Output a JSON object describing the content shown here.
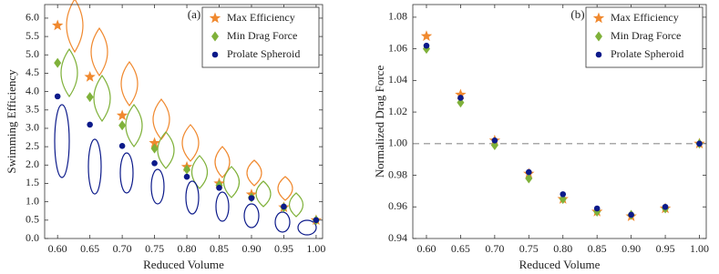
{
  "chart_data": [
    {
      "type": "scatter",
      "annotation": "(a)",
      "xlabel": "Reduced Volume",
      "ylabel": "Swimming Efficiency",
      "x": [
        0.6,
        0.65,
        0.7,
        0.75,
        0.8,
        0.85,
        0.9,
        0.95,
        1.0
      ],
      "xlim": [
        0.58,
        1.01
      ],
      "xticks": [
        {
          "value": 0.6,
          "label": "0.60"
        },
        {
          "value": 0.65,
          "label": "0.65"
        },
        {
          "value": 0.7,
          "label": "0.70"
        },
        {
          "value": 0.75,
          "label": "0.75"
        },
        {
          "value": 0.8,
          "label": "0.80"
        },
        {
          "value": 0.85,
          "label": "0.85"
        },
        {
          "value": 0.9,
          "label": "0.90"
        },
        {
          "value": 0.95,
          "label": "0.95"
        },
        {
          "value": 1.0,
          "label": "1.00"
        }
      ],
      "ylim": [
        0,
        6.37
      ],
      "yticks": [
        {
          "value": 0,
          "label": "0.0"
        },
        0.5,
        {
          "value": 1,
          "label": "1.0"
        },
        1.5,
        {
          "value": 2,
          "label": "2.0"
        },
        2.5,
        {
          "value": 3,
          "label": "3.0"
        },
        3.5,
        {
          "value": 4,
          "label": "4.0"
        },
        4.5,
        {
          "value": 5,
          "label": "5.0"
        },
        5.5,
        {
          "value": 6,
          "label": "6.0"
        }
      ],
      "legend": "upper right",
      "series": [
        {
          "name": "Max Efficiency",
          "color": "#f0892f",
          "marker": "star",
          "values": [
            5.8,
            4.4,
            3.35,
            2.6,
            1.95,
            1.5,
            1.2,
            0.85,
            0.5
          ]
        },
        {
          "name": "Min Drag Force",
          "color": "#7fb13a",
          "marker": "diamond",
          "values": [
            4.78,
            3.85,
            3.08,
            2.45,
            1.88,
            1.45,
            1.12,
            0.85,
            0.5
          ]
        },
        {
          "name": "Prolate Spheroid",
          "color": "#0c1a8a",
          "marker": "circle",
          "values": [
            3.87,
            3.1,
            2.52,
            2.05,
            1.68,
            1.38,
            1.1,
            0.87,
            0.5
          ]
        }
      ]
    },
    {
      "type": "scatter",
      "annotation": "(b)",
      "xlabel": "Reduced Volume",
      "ylabel": "Normalized Drag Force",
      "x": [
        0.6,
        0.65,
        0.7,
        0.75,
        0.8,
        0.85,
        0.9,
        0.95,
        1.0
      ],
      "xlim": [
        0.58,
        1.01
      ],
      "xticks": [
        {
          "value": 0.6,
          "label": "0.60"
        },
        {
          "value": 0.65,
          "label": "0.65"
        },
        {
          "value": 0.7,
          "label": "0.70"
        },
        {
          "value": 0.75,
          "label": "0.75"
        },
        {
          "value": 0.8,
          "label": "0.80"
        },
        {
          "value": 0.85,
          "label": "0.85"
        },
        {
          "value": 0.9,
          "label": "0.90"
        },
        {
          "value": 0.95,
          "label": "0.95"
        },
        {
          "value": 1.0,
          "label": "1.00"
        }
      ],
      "ylim": [
        0.94,
        1.088
      ],
      "yticks": [
        0.94,
        0.96,
        0.98,
        {
          "value": 1,
          "label": "1.00"
        },
        1.02,
        1.04,
        1.06,
        1.08
      ],
      "hline": 1,
      "legend": "upper right",
      "series": [
        {
          "name": "Max Efficiency",
          "color": "#f0892f",
          "marker": "star",
          "values": [
            1.068,
            1.031,
            1.002,
            0.981,
            0.965,
            0.957,
            0.954,
            0.959,
            1.0
          ]
        },
        {
          "name": "Min Drag Force",
          "color": "#7fb13a",
          "marker": "diamond",
          "values": [
            1.06,
            1.026,
            0.999,
            0.978,
            0.965,
            0.957,
            0.955,
            0.959,
            1.0
          ]
        },
        {
          "name": "Prolate Spheroid",
          "color": "#0c1a8a",
          "marker": "circle",
          "values": [
            1.062,
            1.029,
            1.002,
            0.982,
            0.968,
            0.959,
            0.955,
            0.96,
            1.0
          ]
        }
      ]
    }
  ]
}
